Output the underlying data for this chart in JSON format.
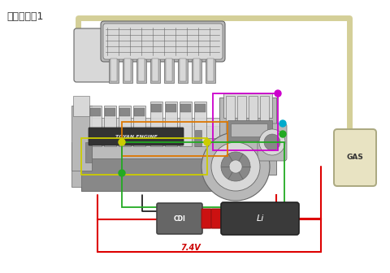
{
  "title": "接線示意圖1",
  "title_fontsize": 9,
  "bg_color": "#ffffff",
  "red_wire_color": "#dd0000",
  "red_wire_lw": 1.5,
  "black_wire_color": "#111111",
  "black_wire_lw": 1.2,
  "beige_tube_color": "#d4cf98",
  "beige_tube_lw": 5,
  "green_rect_color": "#22aa22",
  "orange_rect_color": "#dd7700",
  "magenta_rect_color": "#cc00cc",
  "yellow_rect_color": "#cccc00",
  "cdi_box_color": "#666666",
  "li_box_color": "#3a3a3a",
  "connector_color": "#cc1111",
  "gas_can_color": "#e8e3c2",
  "gas_can_border": "#aaa880",
  "voltage_label": "7.4V",
  "voltage_color": "#cc0000",
  "voltage_fontsize": 7,
  "cdi_label": "CDI",
  "li_label": "Li",
  "gas_label": "GAS",
  "engine_gray_light": "#d8d8d8",
  "engine_gray_mid": "#b8b8b8",
  "engine_gray_dark": "#888888",
  "engine_edge": "#666666",
  "engine_black": "#222222"
}
